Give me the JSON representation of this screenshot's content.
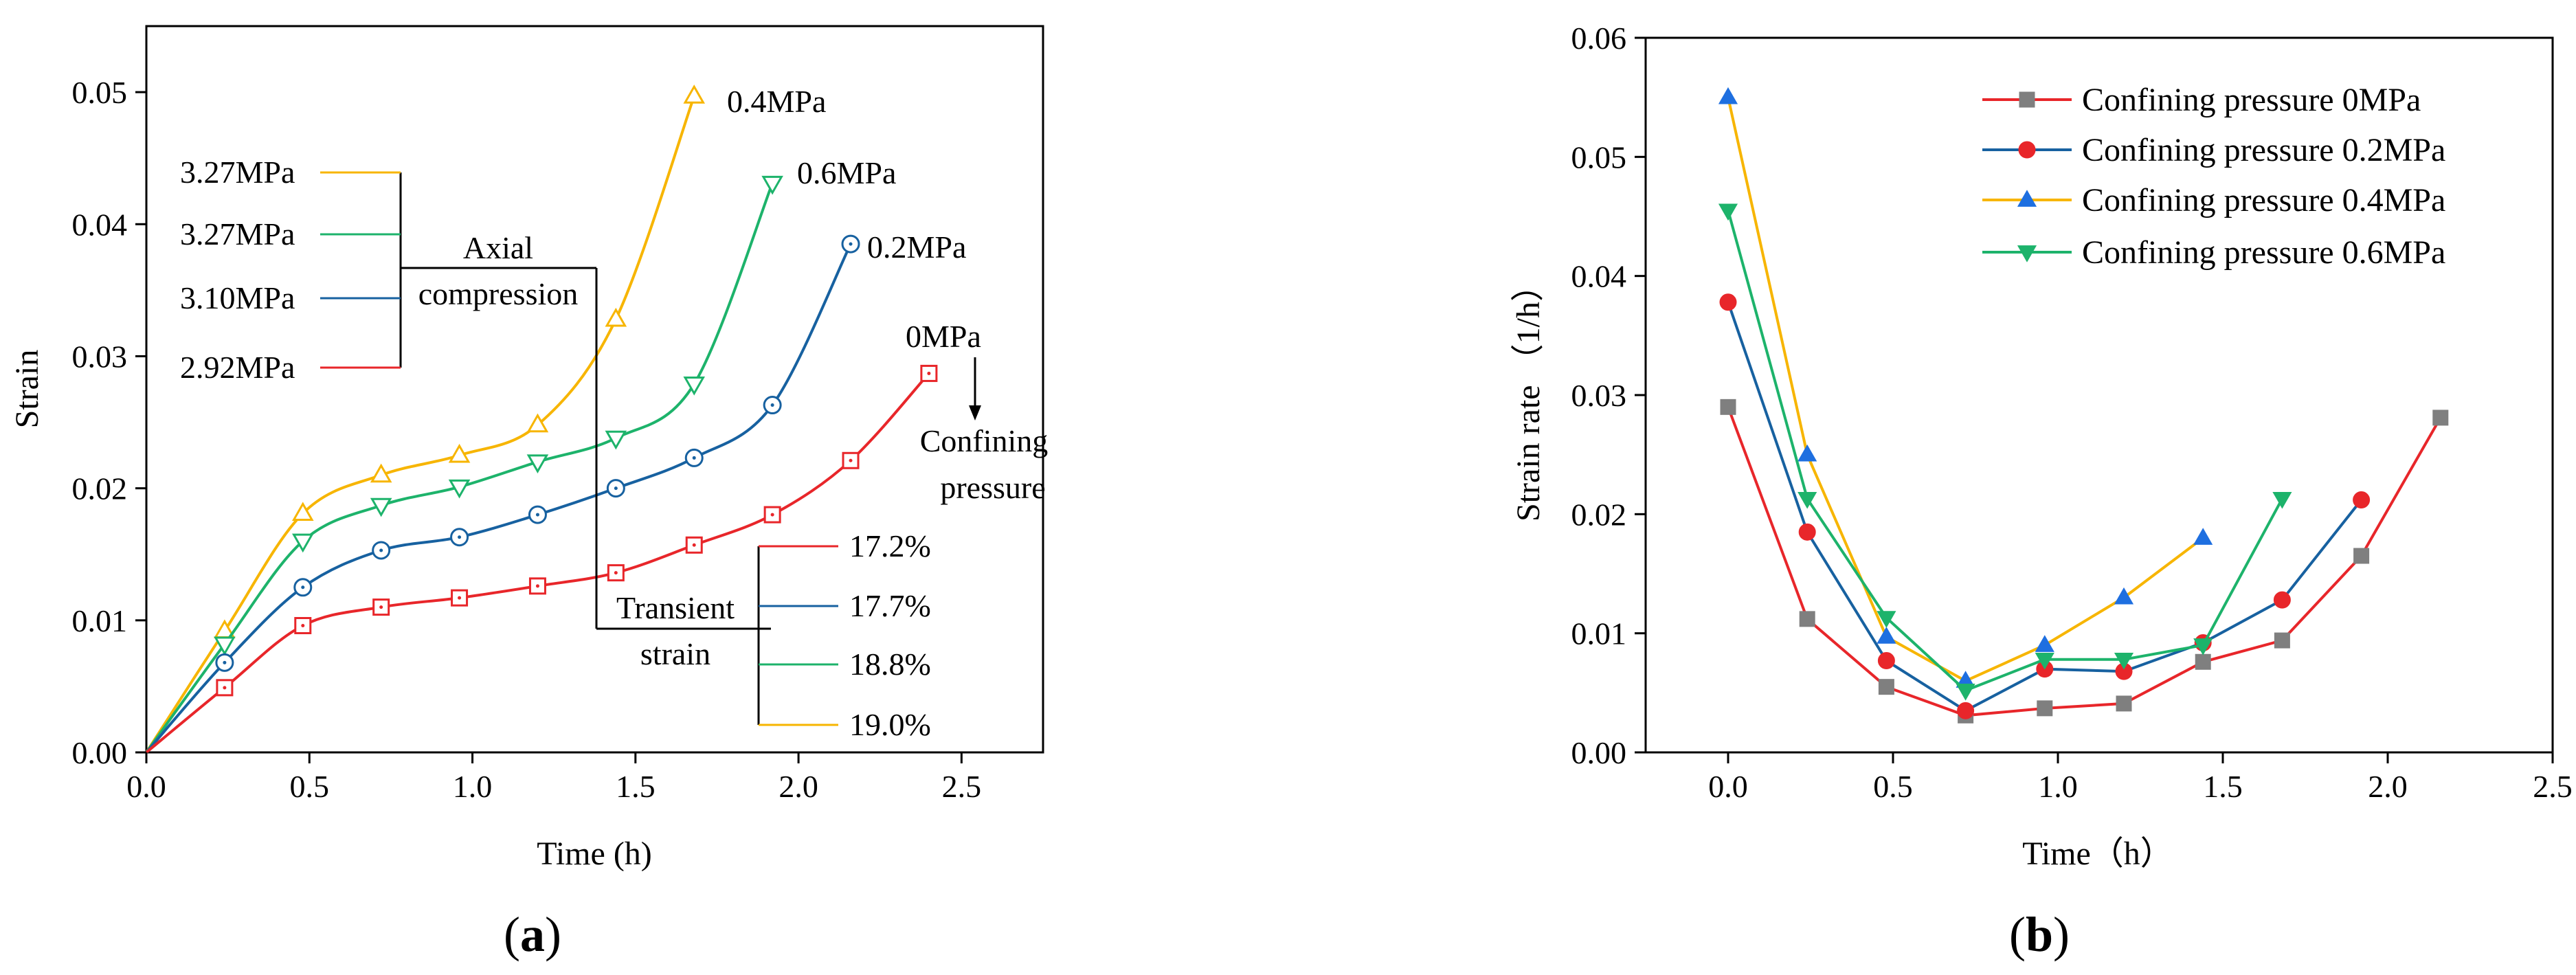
{
  "chart_data": [
    {
      "type": "line",
      "caption": "a",
      "xlabel": "Time (h)",
      "ylabel": "Strain",
      "xlim": [
        0,
        2.75
      ],
      "ylim": [
        0,
        0.055
      ],
      "xticks": [
        "0.0",
        "0.5",
        "1.0",
        "1.5",
        "2.0",
        "2.5"
      ],
      "yticks": [
        "0.00",
        "0.01",
        "0.02",
        "0.03",
        "0.04",
        "0.05"
      ],
      "series": [
        {
          "name": "0.4MPa",
          "color": "#F7B500",
          "marker": "triangle-up-open",
          "x": [
            0,
            0.24,
            0.48,
            0.72,
            0.96,
            1.2,
            1.44,
            1.68
          ],
          "y": [
            0,
            0.0092,
            0.0181,
            0.021,
            0.0225,
            0.0248,
            0.0328,
            0.0497
          ]
        },
        {
          "name": "0.6MPa",
          "color": "#1DB36B",
          "marker": "triangle-down-open",
          "x": [
            0,
            0.24,
            0.48,
            0.72,
            0.96,
            1.2,
            1.44,
            1.68,
            1.92
          ],
          "y": [
            0,
            0.0082,
            0.016,
            0.0187,
            0.0201,
            0.022,
            0.0238,
            0.0279,
            0.0431
          ]
        },
        {
          "name": "0.2MPa",
          "color": "#1761A0",
          "marker": "circle-dot",
          "x": [
            0,
            0.24,
            0.48,
            0.72,
            0.96,
            1.2,
            1.44,
            1.68,
            1.92,
            2.16
          ],
          "y": [
            0,
            0.0068,
            0.0125,
            0.0153,
            0.0163,
            0.018,
            0.02,
            0.0223,
            0.0263,
            0.0385
          ]
        },
        {
          "name": "0MPa",
          "color": "#E8262A",
          "marker": "square-dot",
          "x": [
            0,
            0.24,
            0.48,
            0.72,
            0.96,
            1.2,
            1.44,
            1.68,
            1.92,
            2.16,
            2.4
          ],
          "y": [
            0,
            0.0049,
            0.0096,
            0.011,
            0.0117,
            0.0126,
            0.0136,
            0.0157,
            0.018,
            0.0221,
            0.0287
          ]
        }
      ],
      "annotations": {
        "series_labels": [
          "0.4MPa",
          "0.6MPa",
          "0.2MPa",
          "0MPa"
        ],
        "axial_values": [
          "3.27MPa",
          "3.27MPa",
          "3.10MPa",
          "2.92MPa"
        ],
        "axial_title_1": "Axial",
        "axial_title_2": "compression",
        "transient_values": [
          "17.2%",
          "17.7%",
          "18.8%",
          "19.0%"
        ],
        "transient_title_1": "Transient",
        "transient_title_2": "strain",
        "confining_1": "Confining",
        "confining_2": "pressure"
      }
    },
    {
      "type": "line",
      "caption": "b",
      "xlabel": "Time（h）",
      "ylabel": "Strain rate （1/h）",
      "xlim": [
        -0.25,
        2.5
      ],
      "ylim": [
        0,
        0.06
      ],
      "xticks": [
        "0.0",
        "0.5",
        "1.0",
        "1.5",
        "2.0",
        "2.5"
      ],
      "yticks": [
        "0.00",
        "0.01",
        "0.02",
        "0.03",
        "0.04",
        "0.05",
        "0.06"
      ],
      "legend_position": "top-right",
      "series": [
        {
          "name": "Confining pressure 0MPa",
          "color": "#E8262A",
          "marker_color": "#7F7F7F",
          "marker": "square",
          "x": [
            0,
            0.24,
            0.48,
            0.72,
            0.96,
            1.2,
            1.44,
            1.68,
            1.92,
            2.16
          ],
          "y": [
            0.029,
            0.0112,
            0.0055,
            0.0031,
            0.0037,
            0.0041,
            0.0076,
            0.0094,
            0.0165,
            0.0281
          ]
        },
        {
          "name": "Confining pressure 0.2MPa",
          "color": "#1761A0",
          "marker_color": "#E8262A",
          "marker": "circle",
          "x": [
            0,
            0.24,
            0.48,
            0.72,
            0.96,
            1.2,
            1.44,
            1.68,
            1.92
          ],
          "y": [
            0.0378,
            0.0185,
            0.0077,
            0.0035,
            0.007,
            0.0068,
            0.0092,
            0.0128,
            0.0212
          ]
        },
        {
          "name": "Confining pressure 0.4MPa",
          "color": "#F7B500",
          "marker_color": "#1E6FE0",
          "marker": "triangle-up",
          "x": [
            0,
            0.24,
            0.48,
            0.72,
            0.96,
            1.2,
            1.44
          ],
          "y": [
            0.055,
            0.025,
            0.0097,
            0.006,
            0.009,
            0.013,
            0.018
          ]
        },
        {
          "name": "Confining pressure 0.6MPa",
          "color": "#1DB36B",
          "marker_color": "#1DB36B",
          "marker": "triangle-down",
          "x": [
            0,
            0.24,
            0.48,
            0.72,
            0.96,
            1.2,
            1.44,
            1.68
          ],
          "y": [
            0.0455,
            0.0213,
            0.0113,
            0.0052,
            0.0078,
            0.0078,
            0.009,
            0.0213
          ]
        }
      ]
    }
  ]
}
